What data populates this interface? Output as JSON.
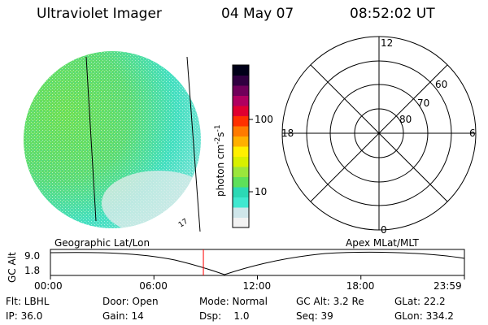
{
  "header": {
    "instrument": "Ultraviolet Imager",
    "date": "04 May 07",
    "time": "08:52:02 UT"
  },
  "colorbar": {
    "label": "photon cm",
    "label_sup1": "-2",
    "label_mid": "s",
    "label_sup2": "-1",
    "ticks": [
      "100",
      "10"
    ],
    "tick_values": [
      100,
      10
    ],
    "range": [
      2,
      500
    ],
    "scale": "log",
    "colors": [
      "#f2f2f2",
      "#cfe6ea",
      "#40e8d0",
      "#2bd9b5",
      "#5ee05a",
      "#9be63c",
      "#d8f000",
      "#fff000",
      "#ffb000",
      "#ff7a00",
      "#ff3000",
      "#e00030",
      "#b00060",
      "#70005a",
      "#300040",
      "#000018"
    ]
  },
  "globe": {
    "marker_label": "17"
  },
  "polar": {
    "mlt_labels": {
      "top": "12",
      "left": "18",
      "right": "6",
      "bottom": "0"
    },
    "lat_labels": [
      "60",
      "70",
      "80"
    ]
  },
  "timeline": {
    "y_axis_label": "GC Alt",
    "y_ticks": [
      "9.0",
      "1.8"
    ],
    "left_caption": "Geographic Lat/Lon",
    "right_caption": "Apex MLat/MLT",
    "x_ticks": [
      "00:00",
      "06:00",
      "12:00",
      "18:00",
      "23:59"
    ],
    "current_time_hours": 8.867,
    "marker_color": "#ff0000"
  },
  "info": {
    "flt": "Flt: LBHL",
    "door": "Door: Open",
    "mode": "Mode: Normal",
    "gc_alt": "GC Alt: 3.2 Re",
    "glat": "GLat:  22.2",
    "ip": "IP: 36.0",
    "gain": "Gain: 14",
    "dsp": "Dsp:    1.0",
    "seq": "Seq: 39",
    "glon": "GLon: 334.2"
  }
}
